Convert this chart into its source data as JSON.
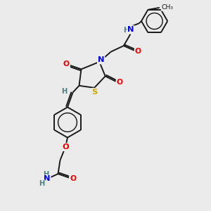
{
  "background_color": "#ebebeb",
  "atom_colors": {
    "C": "#1a1a1a",
    "H": "#4a8080",
    "N": "#0000ee",
    "O": "#ee0000",
    "S": "#ccaa00"
  },
  "bond_color": "#1a1a1a",
  "figsize": [
    3.0,
    3.0
  ],
  "dpi": 100,
  "xlim": [
    0,
    10
  ],
  "ylim": [
    0,
    10
  ]
}
